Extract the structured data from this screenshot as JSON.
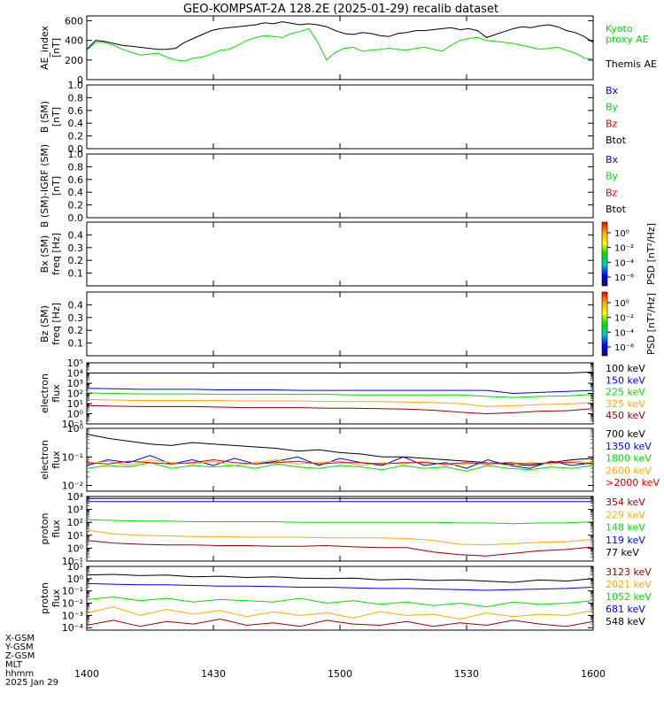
{
  "title": "GEO-KOMPSAT-2A 128.2E (2025-01-29) recalib dataset",
  "colors": {
    "black": "#000000",
    "blue": "#0000ff",
    "green": "#00dd00",
    "red": "#dd0000",
    "orange": "#ffaa00",
    "darkred": "#990000"
  },
  "x_axis": {
    "ticks": [
      "1400",
      "1430",
      "1500",
      "1530",
      "1600"
    ],
    "row_labels": [
      "X-GSM",
      "Y-GSM",
      "Z-GSM",
      "MLT",
      "hhmm",
      "2025 Jan 29"
    ]
  },
  "chart_data": [
    {
      "type": "line",
      "id": "ae",
      "ylabel": [
        "AE_index",
        "[nT]"
      ],
      "yticks": [
        "600",
        "400",
        "200",
        "0"
      ],
      "ylim": [
        0,
        650
      ],
      "legend": [
        "Kyoto",
        "proxy AE",
        "Themis AE"
      ],
      "series": [
        {
          "name": "Themis AE",
          "color": "black",
          "values": [
            310,
            400,
            390,
            370,
            350,
            340,
            330,
            320,
            310,
            310,
            320,
            380,
            420,
            460,
            500,
            520,
            530,
            540,
            550,
            560,
            580,
            570,
            590,
            575,
            560,
            570,
            560,
            540,
            500,
            470,
            460,
            480,
            470,
            450,
            440,
            470,
            480,
            500,
            500,
            510,
            520,
            530,
            510,
            520,
            500,
            430,
            460,
            490,
            520,
            540,
            530,
            550,
            560,
            540,
            500,
            480,
            440,
            380
          ]
        },
        {
          "name": "Kyoto proxy AE",
          "color": "green",
          "values": [
            300,
            380,
            380,
            350,
            310,
            280,
            250,
            260,
            270,
            230,
            200,
            190,
            220,
            230,
            260,
            300,
            310,
            350,
            400,
            430,
            450,
            440,
            430,
            470,
            490,
            520,
            380,
            200,
            280,
            320,
            330,
            290,
            300,
            310,
            320,
            310,
            300,
            320,
            330,
            310,
            290,
            350,
            400,
            420,
            430,
            400,
            390,
            380,
            370,
            350,
            330,
            310,
            320,
            330,
            300,
            270,
            220,
            210
          ]
        }
      ]
    },
    {
      "type": "line",
      "id": "bsm",
      "ylabel": [
        "B (SM)",
        "[nT]"
      ],
      "yticks": [
        "1.0",
        "0.8",
        "0.6",
        "0.4",
        "0.2",
        "0.0"
      ],
      "ylim": [
        0,
        1
      ],
      "legend": [
        "Bx",
        "By",
        "Bz",
        "Btot"
      ],
      "series": []
    },
    {
      "type": "line",
      "id": "bigrf",
      "ylabel": [
        "B (SM)-IGRF (SM)",
        "[nT]"
      ],
      "yticks": [
        "1.0",
        "0.8",
        "0.6",
        "0.4",
        "0.2",
        "0.0"
      ],
      "ylim": [
        0,
        1
      ],
      "legend": [
        "Bx",
        "By",
        "Bz",
        "Btot"
      ],
      "series": []
    },
    {
      "type": "heatmap",
      "id": "bxspec",
      "ylabel": [
        "Bx (SM)",
        "freq [Hz]"
      ],
      "yticks": [
        "0.4",
        "0.3",
        "0.2",
        "0.1"
      ],
      "ylim": [
        0,
        0.5
      ],
      "colorbar": {
        "label": "PSD [nT²/Hz]",
        "ticks": [
          "10⁰",
          "10⁻²",
          "10⁻⁴",
          "10⁻⁶"
        ]
      },
      "series": []
    },
    {
      "type": "heatmap",
      "id": "bzspec",
      "ylabel": [
        "Bz (SM)",
        "freq [Hz]"
      ],
      "yticks": [
        "0.4",
        "0.3",
        "0.2",
        "0.1"
      ],
      "ylim": [
        0,
        0.5
      ],
      "colorbar": {
        "label": "PSD [nT²/Hz]",
        "ticks": [
          "10⁰",
          "10⁻²",
          "10⁻⁴",
          "10⁻⁶"
        ]
      },
      "series": []
    },
    {
      "type": "line",
      "id": "elec1",
      "log": true,
      "ylabel": [
        "electron",
        "flux"
      ],
      "yticks": [
        "10⁵",
        "10⁴",
        "10³",
        "10²",
        "10¹",
        "10⁰",
        "10⁻¹"
      ],
      "ylim": [
        -1,
        5
      ],
      "legend": [
        "100 keV",
        "150 keV",
        "225 keV",
        "325 keV",
        "450 keV"
      ],
      "series": [
        {
          "name": "100 keV",
          "color": "black",
          "values": [
            4.0,
            4.0,
            4.0,
            4.0,
            4.0,
            4.0,
            4.0,
            4.0,
            4.0,
            4.0,
            4.0,
            4.0,
            4.0,
            4.0,
            4.0,
            4.0,
            4.0,
            4.0,
            4.0,
            4.1
          ]
        },
        {
          "name": "150 keV",
          "color": "blue",
          "values": [
            2.5,
            2.45,
            2.4,
            2.4,
            2.4,
            2.35,
            2.35,
            2.35,
            2.3,
            2.3,
            2.3,
            2.3,
            2.3,
            2.3,
            2.3,
            2.3,
            2.0,
            2.1,
            2.2,
            2.3
          ]
        },
        {
          "name": "225 keV",
          "color": "green",
          "values": [
            2.05,
            2.0,
            1.95,
            1.95,
            1.95,
            1.9,
            1.9,
            1.9,
            1.9,
            1.9,
            1.85,
            1.85,
            1.85,
            1.85,
            1.85,
            1.7,
            1.6,
            1.7,
            1.75,
            1.9
          ]
        },
        {
          "name": "325 keV",
          "color": "orange",
          "values": [
            1.4,
            1.35,
            1.3,
            1.3,
            1.3,
            1.3,
            1.25,
            1.25,
            1.25,
            1.2,
            1.2,
            1.2,
            1.15,
            1.1,
            1.0,
            0.7,
            0.8,
            0.9,
            0.95,
            1.1
          ]
        },
        {
          "name": "450 keV",
          "color": "darkred",
          "values": [
            0.8,
            0.75,
            0.7,
            0.7,
            0.7,
            0.65,
            0.6,
            0.6,
            0.6,
            0.55,
            0.55,
            0.5,
            0.45,
            0.35,
            0.15,
            0.0,
            0.1,
            0.25,
            0.3,
            0.5
          ]
        }
      ]
    },
    {
      "type": "line",
      "id": "elec2",
      "log": true,
      "ylabel": [
        "electron",
        "flux"
      ],
      "yticks": [
        "10⁰",
        "10⁻¹",
        "10⁻²"
      ],
      "ylim": [
        -2.2,
        0
      ],
      "legend": [
        "700 keV",
        "1350 keV",
        "1800 keV",
        "2600 keV",
        ">2000 keV"
      ],
      "series": [
        {
          "name": "700 keV",
          "color": "black",
          "values": [
            -0.2,
            -0.35,
            -0.45,
            -0.55,
            -0.6,
            -0.5,
            -0.55,
            -0.6,
            -0.65,
            -0.7,
            -0.8,
            -0.75,
            -0.85,
            -0.9,
            -1.0,
            -1.0,
            -1.05,
            -1.1,
            -1.15,
            -1.2,
            -1.25,
            -1.3,
            -1.2,
            -1.1,
            -1.05
          ]
        },
        {
          "name": "1350 keV",
          "color": "blue",
          "values": [
            -1.3,
            -1.1,
            -1.2,
            -0.95,
            -1.25,
            -1.1,
            -1.3,
            -1.05,
            -1.25,
            -1.15,
            -1.0,
            -1.3,
            -1.05,
            -1.2,
            -1.3,
            -1.0,
            -1.3,
            -1.2,
            -1.4,
            -1.1,
            -1.3,
            -1.4,
            -1.15,
            -1.3,
            -1.2
          ]
        },
        {
          "name": "1800 keV",
          "color": "green",
          "values": [
            -1.4,
            -1.3,
            -1.35,
            -1.2,
            -1.4,
            -1.3,
            -1.35,
            -1.3,
            -1.4,
            -1.25,
            -1.35,
            -1.4,
            -1.3,
            -1.35,
            -1.45,
            -1.3,
            -1.4,
            -1.35,
            -1.5,
            -1.3,
            -1.4,
            -1.45,
            -1.35,
            -1.4,
            -1.3
          ]
        },
        {
          "name": "2600 keV",
          "color": "orange",
          "values": [
            -1.25,
            -1.15,
            -1.3,
            -1.1,
            -1.2,
            -1.25,
            -1.15,
            -1.3,
            -1.2,
            -1.1,
            -1.25,
            -1.2,
            -1.15,
            -1.3,
            -1.2,
            -1.25,
            -1.15,
            -1.3,
            -1.25,
            -1.2,
            -1.3,
            -1.2,
            -1.25,
            -1.15,
            -1.2
          ]
        },
        {
          "name": ">2000 keV",
          "color": "red",
          "values": [
            -1.2,
            -1.25,
            -1.15,
            -1.2,
            -1.25,
            -1.2,
            -1.1,
            -1.2,
            -1.25,
            -1.2,
            -1.15,
            -1.25,
            -1.2,
            -1.2,
            -1.25,
            -1.2,
            -1.2,
            -1.25,
            -1.2,
            -1.25,
            -1.2,
            -1.25,
            -1.2,
            -1.2,
            -1.25
          ]
        }
      ]
    },
    {
      "type": "line",
      "id": "prot1",
      "log": true,
      "ylabel": [
        "proton",
        "flux"
      ],
      "yticks": [
        "10⁴",
        "10³",
        "10²",
        "10¹",
        "10⁰",
        "10⁻¹"
      ],
      "ylim": [
        -1,
        4
      ],
      "legend": [
        "354 keV",
        "229 keV",
        "148 keV",
        "119 keV",
        "77 keV"
      ],
      "series": [
        {
          "name": "77 keV",
          "color": "black",
          "values": [
            3.85,
            3.85,
            3.85,
            3.85,
            3.85,
            3.85,
            3.85,
            3.85,
            3.85,
            3.85,
            3.85,
            3.85,
            3.85,
            3.85,
            3.85,
            3.85,
            3.85,
            3.85,
            3.85,
            3.85
          ]
        },
        {
          "name": "119 keV",
          "color": "blue",
          "values": [
            3.6,
            3.6,
            3.6,
            3.6,
            3.6,
            3.6,
            3.6,
            3.6,
            3.6,
            3.6,
            3.6,
            3.6,
            3.6,
            3.6,
            3.6,
            3.6,
            3.6,
            3.6,
            3.6,
            3.6
          ]
        },
        {
          "name": "148 keV",
          "color": "green",
          "values": [
            2.2,
            2.15,
            2.1,
            2.1,
            2.05,
            2.05,
            2.05,
            2.05,
            2.0,
            2.0,
            2.0,
            2.0,
            2.0,
            2.0,
            1.95,
            1.95,
            1.9,
            1.95,
            1.95,
            2.05
          ]
        },
        {
          "name": "229 keV",
          "color": "orange",
          "values": [
            1.4,
            1.1,
            1.0,
            0.95,
            0.9,
            0.9,
            0.85,
            0.85,
            0.85,
            0.8,
            0.8,
            0.8,
            0.75,
            0.6,
            0.3,
            0.25,
            0.35,
            0.45,
            0.5,
            0.7
          ]
        },
        {
          "name": "354 keV",
          "color": "darkred",
          "values": [
            0.6,
            0.4,
            0.3,
            0.25,
            0.25,
            0.2,
            0.2,
            0.15,
            0.15,
            0.2,
            0.1,
            0.05,
            0.05,
            -0.3,
            -0.5,
            -0.6,
            -0.4,
            -0.2,
            -0.1,
            0.1
          ]
        }
      ]
    },
    {
      "type": "line",
      "id": "prot2",
      "log": true,
      "ylabel": [
        "proton",
        "flux"
      ],
      "yticks": [
        "10¹",
        "10⁰",
        "10⁻¹",
        "10⁻²",
        "10⁻³",
        "10⁻⁴"
      ],
      "ylim": [
        -4.2,
        1
      ],
      "legend": [
        "3123 keV",
        "2021 keV",
        "1052 keV",
        "681 keV",
        "548 keV"
      ],
      "series": [
        {
          "name": "548 keV",
          "color": "black",
          "values": [
            0.3,
            0.35,
            0.25,
            0.3,
            0.15,
            0.2,
            0.1,
            0.15,
            0.05,
            0.0,
            0.05,
            -0.1,
            -0.05,
            -0.15,
            -0.1,
            -0.2,
            -0.3,
            -0.1,
            -0.2,
            0.0
          ]
        },
        {
          "name": "681 keV",
          "color": "blue",
          "values": [
            -0.4,
            -0.45,
            -0.5,
            -0.5,
            -0.55,
            -0.6,
            -0.6,
            -0.65,
            -0.7,
            -0.7,
            -0.75,
            -0.8,
            -0.8,
            -0.85,
            -0.9,
            -0.95,
            -0.9,
            -0.85,
            -0.8,
            -0.7
          ]
        },
        {
          "name": "1052 keV",
          "color": "green",
          "values": [
            -1.7,
            -1.5,
            -1.8,
            -1.6,
            -1.9,
            -1.7,
            -1.8,
            -1.9,
            -1.6,
            -2.0,
            -1.8,
            -2.1,
            -1.9,
            -2.2,
            -2.0,
            -2.3,
            -1.9,
            -2.1,
            -2.0,
            -1.8
          ]
        },
        {
          "name": "2021 keV",
          "color": "orange",
          "values": [
            -2.8,
            -2.3,
            -3.0,
            -2.5,
            -2.9,
            -2.6,
            -3.1,
            -2.7,
            -3.0,
            -2.8,
            -3.2,
            -2.7,
            -3.0,
            -2.9,
            -3.3,
            -2.8,
            -3.1,
            -2.9,
            -3.0,
            -2.6
          ]
        },
        {
          "name": "3123 keV",
          "color": "darkred",
          "values": [
            -3.8,
            -3.4,
            -3.9,
            -3.5,
            -3.7,
            -3.3,
            -3.8,
            -3.6,
            -3.9,
            -3.4,
            -3.7,
            -3.8,
            -3.5,
            -3.9,
            -3.6,
            -3.8,
            -3.4,
            -3.7,
            -3.9,
            -3.5
          ]
        }
      ]
    }
  ]
}
